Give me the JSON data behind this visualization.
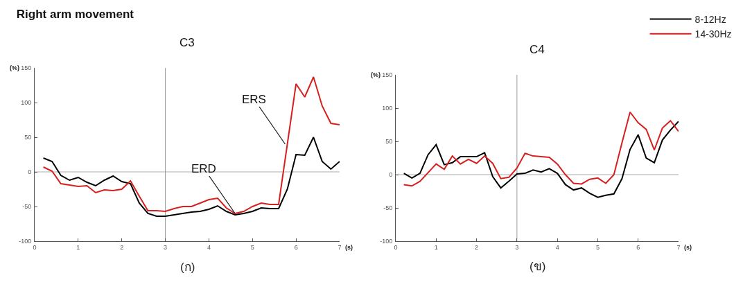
{
  "chart_data": [
    {
      "type": "line",
      "title": "Right arm movement",
      "subtitle": "C3",
      "xlabel": "(s)",
      "ylabel": "(%)",
      "x": [
        0.2,
        0.4,
        0.6,
        0.8,
        1.0,
        1.2,
        1.4,
        1.6,
        1.8,
        2.0,
        2.2,
        2.4,
        2.6,
        2.8,
        3.0,
        3.2,
        3.4,
        3.6,
        3.8,
        4.0,
        4.2,
        4.4,
        4.6,
        4.8,
        5.0,
        5.2,
        5.4,
        5.6,
        5.8,
        6.0,
        6.2,
        6.4,
        6.6,
        6.8,
        7.0
      ],
      "series": [
        {
          "color": "#000000",
          "values": [
            20,
            15,
            -5,
            -12,
            -8,
            -15,
            -20,
            -12,
            -6,
            -14,
            -17,
            -45,
            -60,
            -64,
            -64,
            -62,
            -60,
            -58,
            -57,
            -54,
            -49,
            -57,
            -62,
            -60,
            -57,
            -52,
            -53,
            -53,
            -25,
            25,
            24,
            50,
            15,
            4,
            15
          ]
        },
        {
          "color": "#d62020",
          "values": [
            7,
            1,
            -17,
            -19,
            -21,
            -20,
            -30,
            -26,
            -27,
            -25,
            -13,
            -35,
            -56,
            -56,
            -57,
            -53,
            -50,
            -50,
            -45,
            -40,
            -38,
            -52,
            -60,
            -57,
            -50,
            -45,
            -47,
            -47,
            40,
            127,
            108,
            137,
            95,
            70,
            68
          ]
        }
      ],
      "xlim": [
        0,
        7
      ],
      "ylim": [
        -100,
        150
      ],
      "xticks": [
        0,
        1,
        2,
        3,
        4,
        5,
        6,
        7
      ],
      "yticks": [
        -100,
        -50,
        0,
        50,
        100,
        150
      ],
      "grid": false,
      "legend": false,
      "line_style": "solid",
      "marker": "none",
      "ref_lines": [
        {
          "axis": "x",
          "value": 3,
          "color": "#999999"
        },
        {
          "axis": "y",
          "value": 0,
          "color": "#aaaaaa"
        }
      ],
      "annotations": [
        {
          "text": "ERS",
          "x": 5.75,
          "y": 40
        },
        {
          "text": "ERD",
          "x": 4.6,
          "y": -60
        },
        "(ก)"
      ]
    },
    {
      "type": "line",
      "subtitle": "C4",
      "xlabel": "(s)",
      "ylabel": "(%)",
      "x": [
        0.2,
        0.4,
        0.6,
        0.8,
        1.0,
        1.2,
        1.4,
        1.6,
        1.8,
        2.0,
        2.2,
        2.4,
        2.6,
        2.8,
        3.0,
        3.2,
        3.4,
        3.6,
        3.8,
        4.0,
        4.2,
        4.4,
        4.6,
        4.8,
        5.0,
        5.2,
        5.4,
        5.6,
        5.8,
        6.0,
        6.2,
        6.4,
        6.6,
        6.8,
        7.0
      ],
      "series": [
        {
          "name": "8-12Hz",
          "color": "#000000",
          "values": [
            2,
            -5,
            2,
            30,
            45,
            15,
            18,
            27,
            27,
            27,
            33,
            -3,
            -20,
            -10,
            1,
            2,
            7,
            4,
            9,
            2,
            -15,
            -23,
            -20,
            -28,
            -34,
            -31,
            -29,
            -6,
            38,
            60,
            25,
            18,
            52,
            67,
            80
          ]
        },
        {
          "name": "14-30Hz",
          "color": "#d62020",
          "values": [
            -15,
            -17,
            -10,
            3,
            16,
            8,
            28,
            16,
            23,
            17,
            28,
            17,
            -6,
            -4,
            10,
            32,
            28,
            27,
            26,
            16,
            0,
            -13,
            -14,
            -7,
            -5,
            -13,
            0,
            48,
            94,
            78,
            68,
            37,
            70,
            81,
            65
          ]
        }
      ],
      "xlim": [
        0,
        7
      ],
      "ylim": [
        -100,
        150
      ],
      "xticks": [
        0,
        1,
        2,
        3,
        4,
        5,
        6,
        7
      ],
      "yticks": [
        -100,
        -50,
        0,
        50,
        100,
        150
      ],
      "grid": false,
      "legend": "top right",
      "line_style": "solid",
      "marker": "none",
      "ref_lines": [
        {
          "axis": "x",
          "value": 3,
          "color": "#999999"
        },
        {
          "axis": "y",
          "value": 0,
          "color": "#aaaaaa"
        }
      ],
      "annotations": [
        "(ข)"
      ]
    }
  ]
}
